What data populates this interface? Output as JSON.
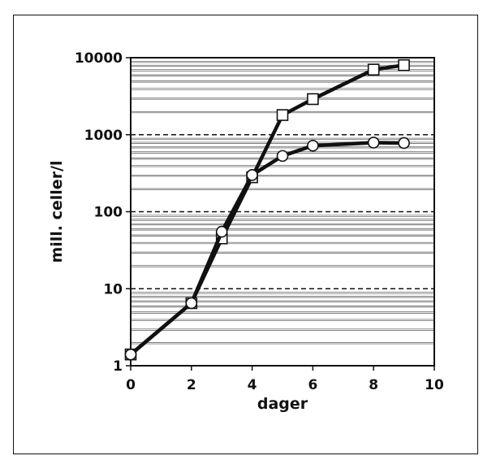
{
  "chart_data": {
    "type": "line",
    "title": "",
    "xlabel": "dager",
    "ylabel": "mill. celler/l",
    "xlim": [
      0,
      10
    ],
    "ylim": [
      1,
      10000
    ],
    "yscale": "log",
    "x_ticks": [
      "0",
      "2",
      "4",
      "6",
      "8",
      "10"
    ],
    "y_ticks": [
      "1",
      "10",
      "100",
      "1000",
      "10000"
    ],
    "grid": "horizontal minor gridlines, dashed lines at decades",
    "legend": "none",
    "series": [
      {
        "marker": "square",
        "x": [
          0,
          2,
          3,
          4,
          5,
          6,
          8,
          9
        ],
        "y": [
          1.4,
          6.5,
          45,
          280,
          1800,
          2900,
          7000,
          8000
        ]
      },
      {
        "marker": "circle",
        "x": [
          0,
          2,
          3,
          4,
          5,
          6,
          8,
          9
        ],
        "y": [
          1.4,
          6.5,
          55,
          300,
          530,
          720,
          790,
          780
        ]
      }
    ],
    "colors": {
      "line": "#111111",
      "marker_fill": "#ffffff",
      "grid": "#555555"
    }
  }
}
